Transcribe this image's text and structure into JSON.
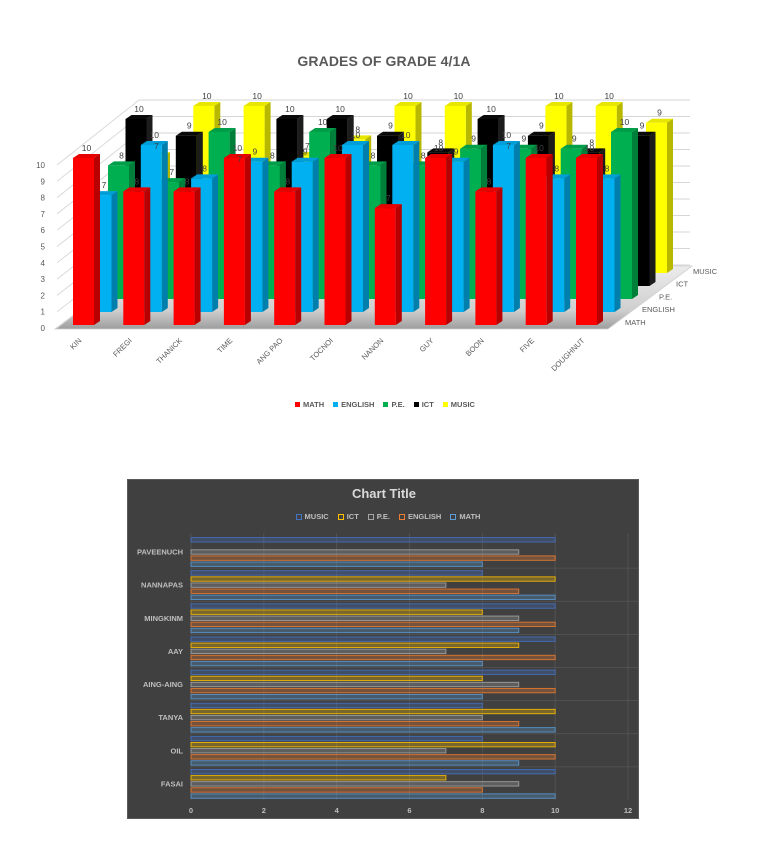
{
  "chart_data": [
    {
      "type": "bar",
      "variant": "3d-clustered-column",
      "title": "GRADES OF GRADE 4/1A",
      "xlabel": "",
      "ylabel": "",
      "ylim": [
        0,
        10
      ],
      "yticks": [
        "0",
        "1",
        "2",
        "3",
        "4",
        "5",
        "6",
        "7",
        "8",
        "9",
        "10"
      ],
      "categories": [
        "KIN",
        "FREGI",
        "THANICK",
        "TIME",
        "ANG PAO",
        "TOCNOI",
        "NANON",
        "GUY",
        "BOON",
        "FIVE",
        "DOUGHNUT"
      ],
      "depth_axis_labels": [
        "MATH",
        "ENGLISH",
        "P.E.",
        "ICT",
        "MUSIC"
      ],
      "series": [
        {
          "name": "MATH",
          "color": "#FF0000",
          "values": [
            10,
            8,
            8,
            10,
            8,
            10,
            7,
            10,
            8,
            10,
            10
          ]
        },
        {
          "name": "ENGLISH",
          "color": "#00B0F0",
          "values": [
            7,
            10,
            8,
            9,
            9,
            10,
            10,
            9,
            10,
            8,
            8
          ]
        },
        {
          "name": "P.E.",
          "color": "#00B050",
          "values": [
            8,
            7,
            10,
            8,
            10,
            8,
            8,
            9,
            9,
            9,
            10
          ]
        },
        {
          "name": "ICT",
          "color": "#000000",
          "values": [
            10,
            9,
            7,
            10,
            10,
            9,
            8,
            10,
            9,
            8,
            9
          ]
        },
        {
          "name": "MUSIC",
          "color": "#FFFF00",
          "values": [
            7,
            10,
            10,
            7,
            8,
            10,
            10,
            7,
            10,
            10,
            9
          ]
        }
      ],
      "data_labels": true,
      "grid": true,
      "legend_position": "bottom",
      "legend": [
        "MATH",
        "ENGLISH",
        "P.E.",
        "ICT",
        "MUSIC"
      ]
    },
    {
      "type": "bar",
      "variant": "horizontal-clustered-bar",
      "title": "Chart Title",
      "xlabel": "",
      "ylabel": "",
      "xlim": [
        0,
        12
      ],
      "xticks": [
        "0",
        "2",
        "4",
        "6",
        "8",
        "10",
        "12"
      ],
      "categories": [
        "FASAI",
        "OIL",
        "TANYA",
        "AING-AING",
        "AAY",
        "MINGKINM",
        "NANNAPAS",
        "PAVEENUCH"
      ],
      "series": [
        {
          "name": "MATH",
          "color": "#5B9BD5",
          "values": [
            10,
            9,
            10,
            8,
            8,
            9,
            10,
            8
          ]
        },
        {
          "name": "ENGLISH",
          "color": "#ED7D31",
          "values": [
            8,
            10,
            9,
            10,
            10,
            10,
            9,
            10
          ]
        },
        {
          "name": "P.E.",
          "color": "#A5A5A5",
          "values": [
            9,
            7,
            8,
            9,
            7,
            9,
            7,
            9
          ]
        },
        {
          "name": "ICT",
          "color": "#FFC000",
          "values": [
            7,
            10,
            10,
            8,
            9,
            8,
            10,
            null
          ]
        },
        {
          "name": "MUSIC",
          "color": "#4472C4",
          "values": [
            10,
            8,
            8,
            10,
            10,
            10,
            8,
            10
          ]
        }
      ],
      "legend_position": "top",
      "legend": [
        "MUSIC",
        "ICT",
        "P.E.",
        "ENGLISH",
        "MATH"
      ],
      "grid": true,
      "background": "#404040"
    }
  ]
}
